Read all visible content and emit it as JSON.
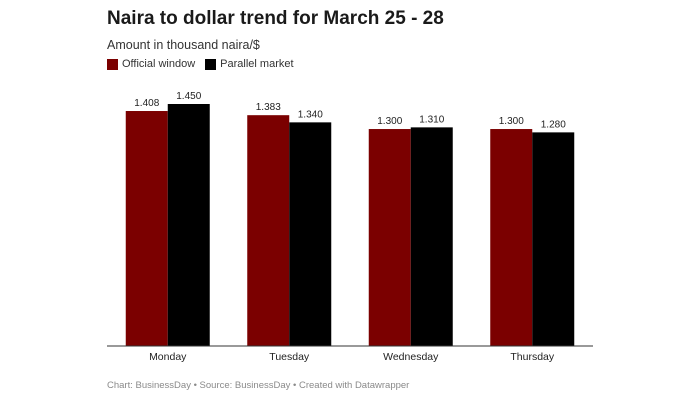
{
  "chart_data": {
    "type": "bar",
    "title": "Naira to dollar trend for March 25 - 28",
    "subtitle": "Amount in thousand naira/$",
    "categories": [
      "Monday",
      "Tuesday",
      "Wednesday",
      "Thursday"
    ],
    "series": [
      {
        "name": "Official window",
        "values": [
          1.408,
          1.383,
          1.3,
          1.3
        ],
        "labels": [
          "1.408",
          "1.383",
          "1.300",
          "1.300"
        ],
        "color": "#7b0000"
      },
      {
        "name": "Parallel market",
        "values": [
          1.45,
          1.34,
          1.31,
          1.28
        ],
        "labels": [
          "1.450",
          "1.340",
          "1.310",
          "1.280"
        ],
        "color": "#000000"
      }
    ],
    "ylim": [
      0,
      1.45
    ],
    "grid": false,
    "legend_position": "top-left",
    "xlabel": "",
    "ylabel": ""
  },
  "footer": {
    "text": "Chart: BusinessDay • Source: BusinessDay • Created with Datawrapper"
  }
}
